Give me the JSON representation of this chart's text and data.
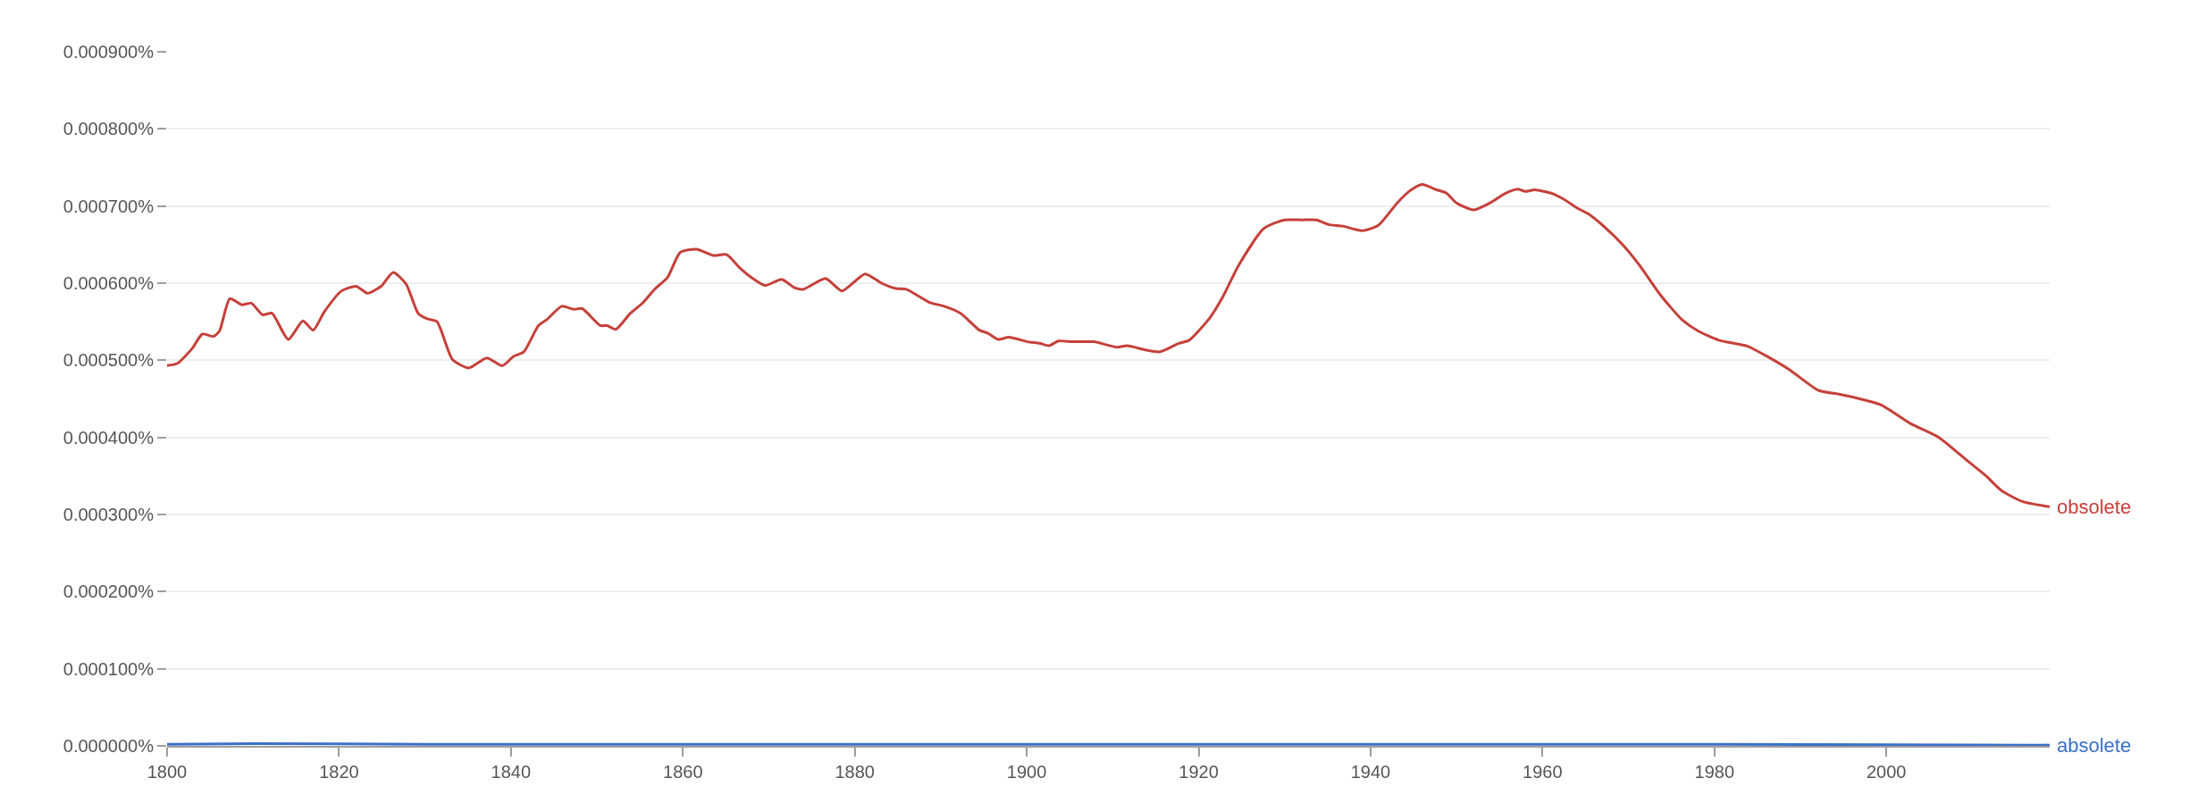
{
  "chart_data": {
    "type": "line",
    "xlim": [
      1800,
      2019
    ],
    "xticks": [
      1800,
      1820,
      1840,
      1860,
      1880,
      1900,
      1920,
      1940,
      1960,
      1980,
      2000
    ],
    "ylim": [
      0,
      0.0009
    ],
    "yticks": [
      {
        "value": 0,
        "label": "0.000000%"
      },
      {
        "value": 0.0001,
        "label": "0.000100%"
      },
      {
        "value": 0.0002,
        "label": "0.000200%"
      },
      {
        "value": 0.0003,
        "label": "0.000300%"
      },
      {
        "value": 0.0004,
        "label": "0.000400%"
      },
      {
        "value": 0.0005,
        "label": "0.000500%"
      },
      {
        "value": 0.0006,
        "label": "0.000600%"
      },
      {
        "value": 0.0007,
        "label": "0.000700%"
      },
      {
        "value": 0.0008,
        "label": "0.000800%"
      },
      {
        "value": 0.0009,
        "label": "0.000900%"
      }
    ],
    "grid": "y",
    "legend": false,
    "marker": "none",
    "line_style": "solid",
    "series": [
      {
        "name": "obsolete",
        "color": "#c5403a",
        "x": [
          1800,
          1801.2,
          1802.9,
          1804.1,
          1805.4,
          1806.1,
          1807.3,
          1808.7,
          1809.8,
          1811.1,
          1812.2,
          1814.1,
          1815.8,
          1817.0,
          1818.3,
          1820.3,
          1822.0,
          1823.3,
          1824.9,
          1826.3,
          1827.8,
          1829.2,
          1830.2,
          1831.4,
          1833.2,
          1835.1,
          1837.2,
          1839.0,
          1840.3,
          1841.5,
          1843.2,
          1844.2,
          1845.9,
          1847.3,
          1848.3,
          1850.4,
          1851.2,
          1852.2,
          1853.9,
          1855.3,
          1856.8,
          1858.2,
          1859.7,
          1861.6,
          1863.5,
          1865.1,
          1866.7,
          1868.4,
          1869.6,
          1871.5,
          1873.0,
          1874.0,
          1876.6,
          1878.5,
          1881.2,
          1883.1,
          1884.8,
          1886.0,
          1888.7,
          1890.4,
          1892.3,
          1894.5,
          1895.5,
          1896.7,
          1897.9,
          1900.1,
          1901.5,
          1902.6,
          1903.7,
          1905.4,
          1907.8,
          1910.5,
          1911.7,
          1913.6,
          1915.5,
          1917.7,
          1918.9,
          1921.3,
          1922.8,
          1924.7,
          1927.6,
          1930.0,
          1932.0,
          1933.7,
          1935.1,
          1936.8,
          1939.0,
          1940.9,
          1943.1,
          1944.6,
          1946.0,
          1947.7,
          1948.8,
          1950.0,
          1952.0,
          1953.9,
          1955.6,
          1957.1,
          1958.0,
          1959.1,
          1961.2,
          1962.6,
          1964.1,
          1965.3,
          1967.0,
          1969.4,
          1971.3,
          1973.7,
          1976.2,
          1978.1,
          1980.5,
          1983.9,
          1986.3,
          1988.7,
          1992.1,
          1994.5,
          1996.9,
          1999.4,
          2002.8,
          2006.1,
          2009.5,
          2011.5,
          2013.4,
          2015.8,
          2019
        ],
        "values": [
          0.000493,
          0.000496,
          0.000515,
          0.000534,
          0.000531,
          0.000538,
          0.00058,
          0.000572,
          0.000574,
          0.000559,
          0.000561,
          0.000527,
          0.000551,
          0.000539,
          0.000563,
          0.00059,
          0.000596,
          0.000587,
          0.000596,
          0.000614,
          0.000599,
          0.000561,
          0.000554,
          0.00055,
          0.000501,
          0.00049,
          0.000503,
          0.000493,
          0.000505,
          0.000511,
          0.000545,
          0.000553,
          0.00057,
          0.000566,
          0.000567,
          0.000545,
          0.000545,
          0.00054,
          0.000561,
          0.000574,
          0.000593,
          0.000607,
          0.00064,
          0.000644,
          0.000636,
          0.000637,
          0.000619,
          0.000604,
          0.000597,
          0.000605,
          0.000594,
          0.000592,
          0.000606,
          0.00059,
          0.000612,
          0.0006,
          0.000593,
          0.000592,
          0.000575,
          0.00057,
          0.000561,
          0.000539,
          0.000535,
          0.000527,
          0.00053,
          0.000524,
          0.000522,
          0.000519,
          0.000525,
          0.000524,
          0.000524,
          0.000517,
          0.000519,
          0.000514,
          0.000511,
          0.000522,
          0.000526,
          0.000555,
          0.000582,
          0.000624,
          0.000671,
          0.000682,
          0.000682,
          0.000682,
          0.000676,
          0.000674,
          0.000668,
          0.000675,
          0.000704,
          0.00072,
          0.000728,
          0.000721,
          0.000717,
          0.000704,
          0.000695,
          0.000704,
          0.000716,
          0.000722,
          0.000719,
          0.000721,
          0.000716,
          0.000708,
          0.000697,
          0.00069,
          0.000675,
          0.000649,
          0.000623,
          0.000585,
          0.000553,
          0.000538,
          0.000526,
          0.000518,
          0.000504,
          0.000488,
          0.000461,
          0.000456,
          0.00045,
          0.000442,
          0.000418,
          0.0004,
          0.000369,
          0.000351,
          0.000331,
          0.000317,
          0.00031
        ]
      },
      {
        "name": "absolete",
        "color": "#3b6fc9",
        "x": [
          1800,
          1810,
          1830,
          1860,
          1900,
          1940,
          1980,
          2019
        ],
        "values": [
          2e-06,
          3e-06,
          2e-06,
          2e-06,
          2e-06,
          2e-06,
          2e-06,
          1e-06
        ]
      }
    ]
  }
}
